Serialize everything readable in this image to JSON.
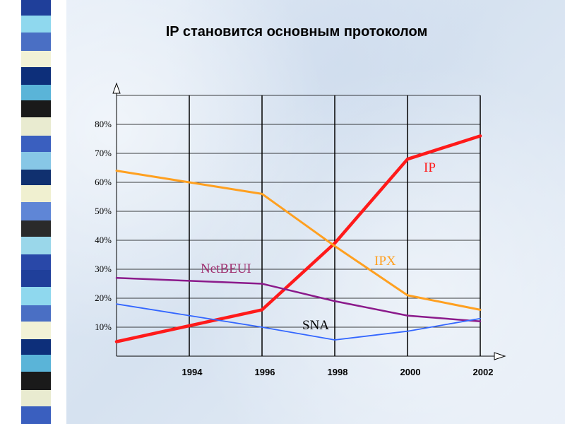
{
  "slide": {
    "title": "IP становится основным протоколом"
  },
  "chart_data": {
    "type": "line",
    "title": "IP становится основным протоколом",
    "x": [
      1992,
      1994,
      1996,
      1998,
      2000,
      2002
    ],
    "xticks": [
      "1994",
      "1996",
      "1998",
      "2000",
      "2002"
    ],
    "yticks": [
      "10%",
      "20%",
      "30%",
      "40%",
      "50%",
      "60%",
      "70%",
      "80%"
    ],
    "ylim": [
      0,
      90
    ],
    "xlim": [
      1992,
      2002
    ],
    "grid": true,
    "series": [
      {
        "name": "IP",
        "color": "#ff1a1a",
        "points": [
          [
            1992,
            5
          ],
          [
            1996,
            16
          ],
          [
            1998,
            39
          ],
          [
            2000,
            68
          ],
          [
            2002,
            76
          ]
        ]
      },
      {
        "name": "IPX",
        "color": "#ffa020",
        "points": [
          [
            1992,
            64
          ],
          [
            1994,
            60
          ],
          [
            1996,
            56
          ],
          [
            1998,
            38
          ],
          [
            2000,
            21
          ],
          [
            2002,
            16
          ]
        ]
      },
      {
        "name": "NetBEUI",
        "color": "#8b1a8b",
        "points": [
          [
            1992,
            27
          ],
          [
            1994,
            26
          ],
          [
            1996,
            25
          ],
          [
            1998,
            19
          ],
          [
            2000,
            14
          ],
          [
            2002,
            12
          ]
        ]
      },
      {
        "name": "SNA",
        "color": "#3366ff",
        "points": [
          [
            1992,
            18
          ],
          [
            1994,
            14
          ],
          [
            1996,
            10
          ],
          [
            1998,
            5.6
          ],
          [
            2000,
            8.6
          ],
          [
            2002,
            13
          ]
        ]
      }
    ],
    "series_labels": [
      "IP",
      "IPX",
      "NetBEUI",
      "SNA"
    ]
  }
}
